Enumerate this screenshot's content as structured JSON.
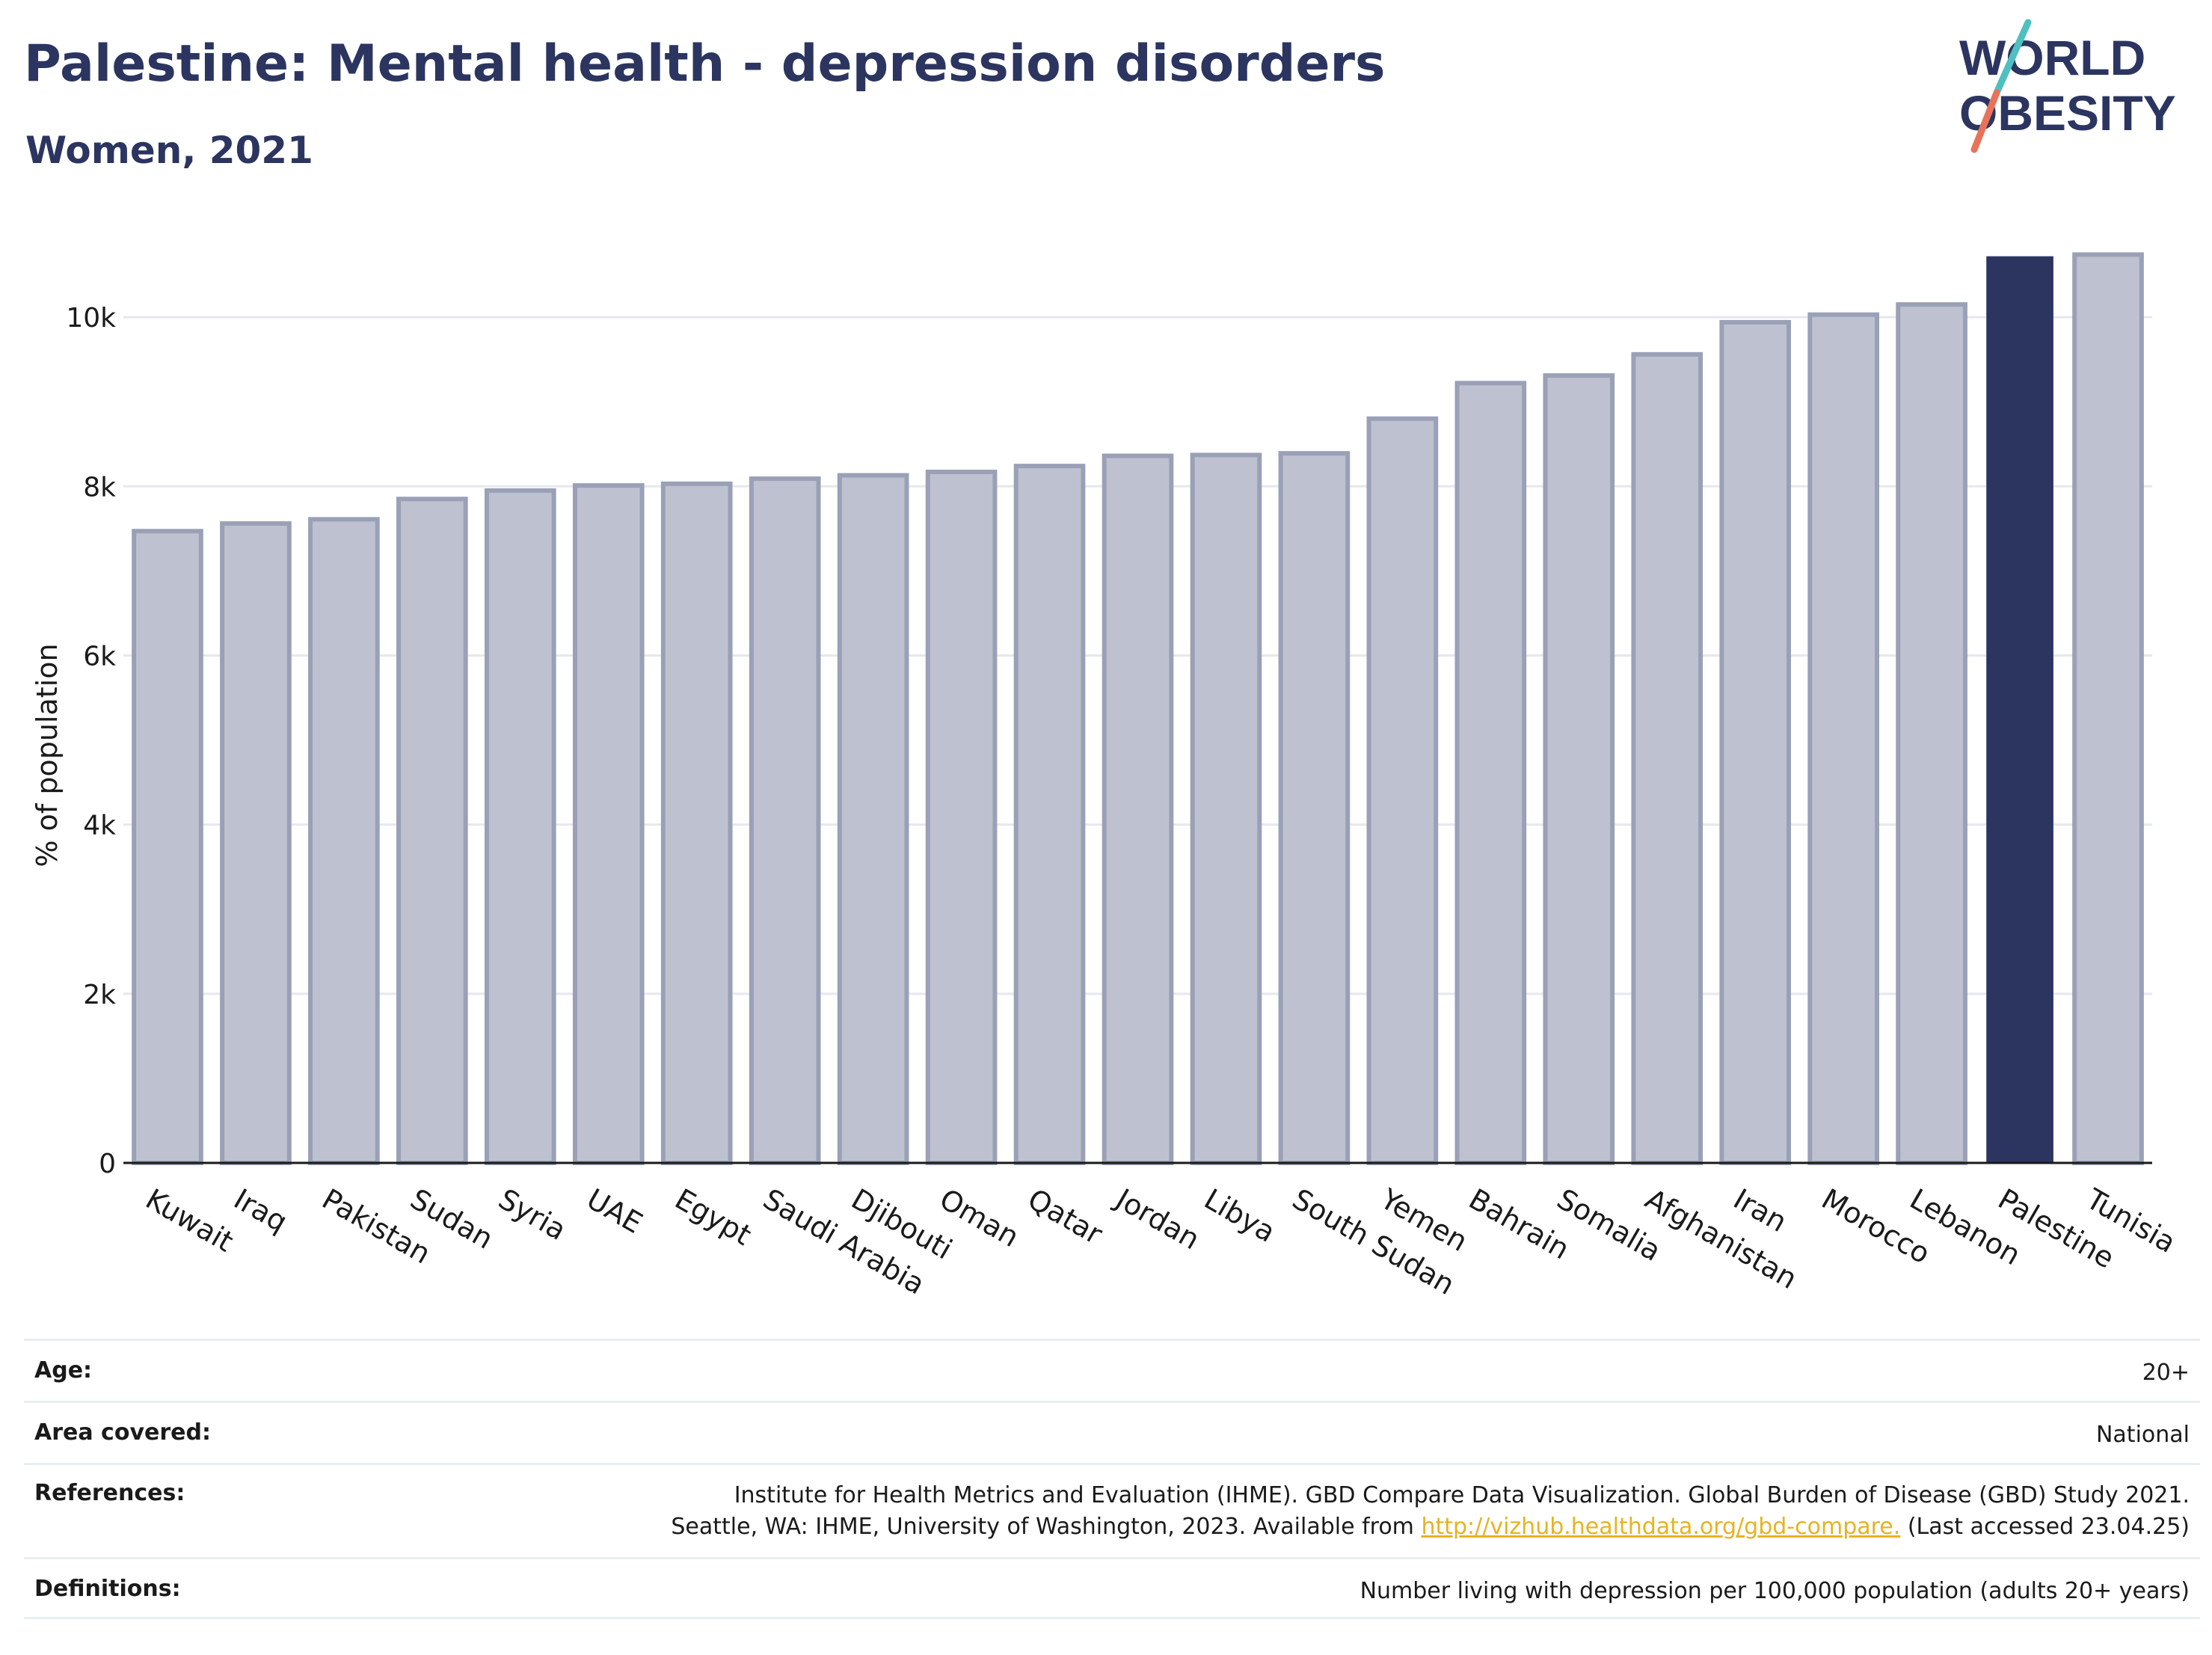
{
  "header": {
    "title": "Palestine: Mental health - depression disorders",
    "subtitle": "Women, 2021"
  },
  "logo": {
    "line1": "WORLD",
    "line2": "OBESITY",
    "colors": {
      "text": "#2b3560",
      "slash_top": "#4fbfbf",
      "slash_bottom": "#e8735a"
    }
  },
  "chart_data": {
    "type": "bar",
    "ylabel": "% of population",
    "xlabel": "",
    "ylim": [
      0,
      11000
    ],
    "yticks": [
      0,
      2000,
      4000,
      6000,
      8000,
      10000
    ],
    "ytick_labels": [
      "0",
      "2k",
      "4k",
      "6k",
      "8k",
      "10k"
    ],
    "grid": true,
    "highlight": "Palestine",
    "colors": {
      "bar": "#bec2d0",
      "bar_edge": "#9aa0b6",
      "highlight": "#2b3560",
      "grid": "#e6e8ee",
      "axis": "#1a1a1a"
    },
    "categories": [
      "Kuwait",
      "Iraq",
      "Pakistan",
      "Sudan",
      "Syria",
      "UAE",
      "Egypt",
      "Saudi Arabia",
      "Djibouti",
      "Oman",
      "Qatar",
      "Jordan",
      "Libya",
      "South Sudan",
      "Yemen",
      "Bahrain",
      "Somalia",
      "Afghanistan",
      "Iran",
      "Morocco",
      "Lebanon",
      "Palestine",
      "Tunisia"
    ],
    "values": [
      7470,
      7560,
      7610,
      7850,
      7950,
      8010,
      8030,
      8090,
      8130,
      8170,
      8240,
      8360,
      8370,
      8390,
      8800,
      9220,
      9310,
      9560,
      9940,
      10030,
      10150,
      10720,
      10740
    ]
  },
  "info": {
    "age_label": "Age:",
    "age_value": "20+",
    "area_label": "Area covered:",
    "area_value": "National",
    "references_label": "References:",
    "references_line1": "Institute for Health Metrics and Evaluation (IHME). GBD Compare Data Visualization. Global Burden of Disease (GBD) Study 2021.",
    "references_line2_prefix": "Seattle, WA: IHME, University of Washington, 2023. Available from ",
    "references_link": "http://vizhub.healthdata.org/gbd-compare.",
    "references_line2_suffix": " (Last accessed 23.04.25)",
    "definitions_label": "Definitions:",
    "definitions_value": "Number living with depression per 100,000 population (adults 20+ years)"
  }
}
